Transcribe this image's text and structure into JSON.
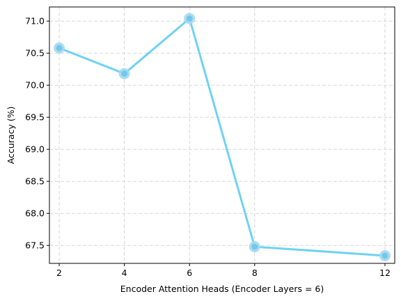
{
  "chart_data": {
    "type": "line",
    "title": "",
    "xlabel": "Encoder Attention Heads (Encoder Layers = 6)",
    "ylabel": "Accuracy (%)",
    "x": [
      2,
      4,
      6,
      8,
      12
    ],
    "series": [
      {
        "values": [
          70.58,
          70.18,
          71.04,
          67.48,
          67.34
        ]
      }
    ],
    "xlim": [
      1.7,
      12.3
    ],
    "ylim": [
      67.22,
      71.22
    ],
    "xticks": [
      2,
      4,
      6,
      8,
      12
    ],
    "yticks": [
      67.5,
      68.0,
      68.5,
      69.0,
      69.5,
      70.0,
      70.5,
      71.0
    ],
    "ytick_labels": [
      "67.5",
      "68.0",
      "68.5",
      "69.0",
      "69.5",
      "70.0",
      "70.5",
      "71.0"
    ],
    "grid": true,
    "legend": "none",
    "colors": {
      "line": "#6fd2f5",
      "marker_outer": "#a6d8ef",
      "marker_inner": "#72c8ec",
      "grid": "#cccccc",
      "axes": "#000000"
    }
  }
}
